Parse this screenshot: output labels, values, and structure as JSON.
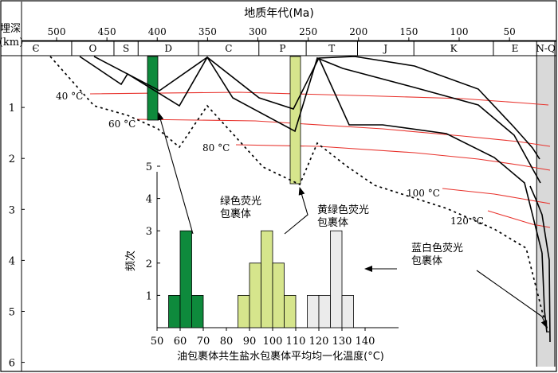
{
  "top_axis": {
    "title": "地质年代(Ma)",
    "ticks": [
      {
        "value": 500,
        "label": "500"
      },
      {
        "value": 450,
        "label": "450"
      },
      {
        "value": 400,
        "label": "400"
      },
      {
        "value": 350,
        "label": "350"
      },
      {
        "value": 300,
        "label": "300"
      },
      {
        "value": 250,
        "label": "250"
      },
      {
        "value": 200,
        "label": "200"
      },
      {
        "value": 150,
        "label": "150"
      },
      {
        "value": 100,
        "label": "100"
      },
      {
        "value": 50,
        "label": "50"
      }
    ]
  },
  "left_axis": {
    "title_line1": "埋深",
    "title_line2": "(km)",
    "ticks": [
      {
        "value": 1,
        "label": "1"
      },
      {
        "value": 2,
        "label": "2"
      },
      {
        "value": 3,
        "label": "3"
      },
      {
        "value": 4,
        "label": "4"
      },
      {
        "value": 5,
        "label": "5"
      },
      {
        "value": 6,
        "label": "6"
      }
    ]
  },
  "periods": [
    {
      "label": "Є",
      "from": 541,
      "to": 485
    },
    {
      "label": "O",
      "from": 485,
      "to": 443
    },
    {
      "label": "S",
      "from": 443,
      "to": 419
    },
    {
      "label": "D",
      "from": 419,
      "to": 359
    },
    {
      "label": "C",
      "from": 359,
      "to": 299
    },
    {
      "label": "P",
      "from": 299,
      "to": 252
    },
    {
      "label": "T",
      "from": 252,
      "to": 201
    },
    {
      "label": "J",
      "from": 201,
      "to": 145
    },
    {
      "label": "K",
      "from": 145,
      "to": 66
    },
    {
      "label": "E",
      "from": 66,
      "to": 23
    },
    {
      "label": "N-Q",
      "from": 23,
      "to": 0
    }
  ],
  "isotherms": [
    {
      "label": "40 °C"
    },
    {
      "label": "60 °C"
    },
    {
      "label": "80 °C"
    },
    {
      "label": "100 °C"
    },
    {
      "label": "120 °C"
    }
  ],
  "annotations": {
    "green": "绿色荧光",
    "green_2": "包裹体",
    "yellow": "黄绿色荧光",
    "yellow_2": "包裹体",
    "blue": "蓝白色荧光",
    "blue_2": "包裹体"
  },
  "colors": {
    "burial": "#000000",
    "isotherm": "#e8322c",
    "green_fill": "#0e8a3c",
    "yellow_fill": "#d6e58c",
    "white_fill": "#ebebeb",
    "nq_fill": "#d9d9d9"
  },
  "chart_data": {
    "type": "bar",
    "xlabel": "油包裹体共生盐水包裹体平均均一化温度(°C)",
    "ylabel": "频次",
    "xlim": [
      50,
      145
    ],
    "ylim": [
      0,
      5
    ],
    "x_ticks": [
      "50",
      "60",
      "70",
      "80",
      "90",
      "100",
      "110",
      "120",
      "130",
      "140"
    ],
    "y_ticks": [
      "1",
      "2",
      "3",
      "4",
      "5"
    ],
    "bin_width": 5,
    "series": [
      {
        "name": "绿色荧光包裹体",
        "color": "#0e8a3c",
        "bins": [
          {
            "x": 55,
            "count": 1
          },
          {
            "x": 60,
            "count": 3
          },
          {
            "x": 65,
            "count": 1
          }
        ]
      },
      {
        "name": "黄绿色荧光包裹体",
        "color": "#d6e58c",
        "bins": [
          {
            "x": 85,
            "count": 1
          },
          {
            "x": 90,
            "count": 2
          },
          {
            "x": 95,
            "count": 3
          },
          {
            "x": 100,
            "count": 2
          },
          {
            "x": 105,
            "count": 1
          }
        ]
      },
      {
        "name": "蓝白色荧光包裹体",
        "color": "#ebebeb",
        "bins": [
          {
            "x": 115,
            "count": 1
          },
          {
            "x": 120,
            "count": 1
          },
          {
            "x": 125,
            "count": 3
          },
          {
            "x": 130,
            "count": 1
          }
        ]
      }
    ]
  }
}
